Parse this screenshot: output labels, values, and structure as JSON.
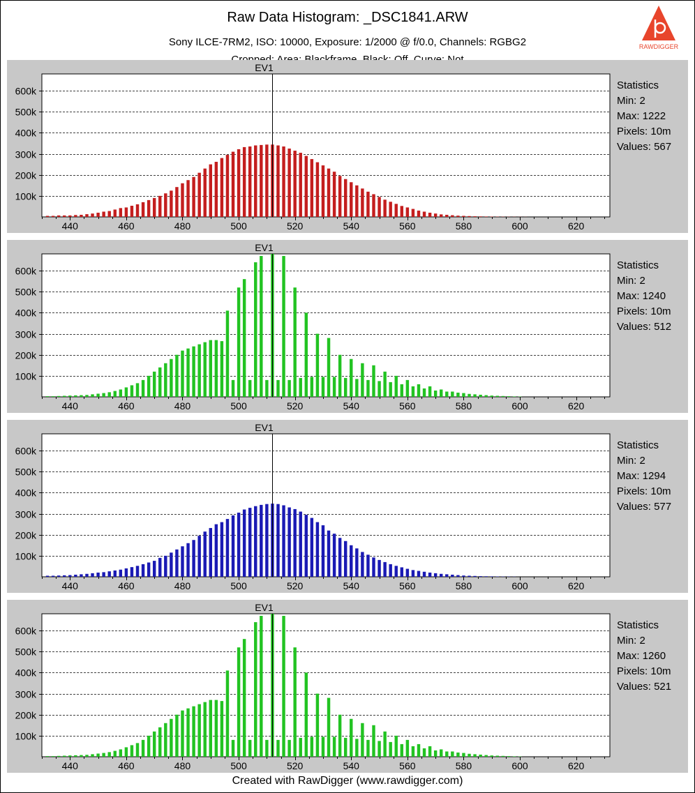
{
  "header": {
    "title": "Raw Data Histogram: _DSC1841.ARW",
    "subtitle": "Sony ILCE-7RM2, ISO: 10000, Exposure: 1/2000 @ f/0.0, Channels: RGBG2",
    "subtitle2": "Cropped: Area: Blackframe, Black: Off, Curve: Not",
    "logo_text": "RAWDIGGER",
    "logo_color": "#e8452c"
  },
  "footer": {
    "text": "Created with RawDigger (www.rawdigger.com)"
  },
  "chart_data": [
    {
      "type": "bar",
      "channel": "R",
      "color": "#c41e1e",
      "marker_label": "EV1",
      "marker_x": 512,
      "xlim": [
        430,
        632
      ],
      "ylim": [
        0,
        680000
      ],
      "xticks": [
        440,
        460,
        480,
        500,
        520,
        540,
        560,
        580,
        600,
        620
      ],
      "yticks": [
        "100k",
        "200k",
        "300k",
        "400k",
        "500k",
        "600k"
      ],
      "grid": true,
      "stats": {
        "heading": "Statistics",
        "min": "Min: 2",
        "max": "Max: 1222",
        "pixels": "Pixels: 10m",
        "values": "Values: 567"
      },
      "x": [
        432,
        434,
        436,
        438,
        440,
        442,
        444,
        446,
        448,
        450,
        452,
        454,
        456,
        458,
        460,
        462,
        464,
        466,
        468,
        470,
        472,
        474,
        476,
        478,
        480,
        482,
        484,
        486,
        488,
        490,
        492,
        494,
        496,
        498,
        500,
        502,
        504,
        506,
        508,
        510,
        512,
        514,
        516,
        518,
        520,
        522,
        524,
        526,
        528,
        530,
        532,
        534,
        536,
        538,
        540,
        542,
        544,
        546,
        548,
        550,
        552,
        554,
        556,
        558,
        560,
        562,
        564,
        566,
        568,
        570,
        572,
        574,
        576,
        578,
        580,
        582,
        584,
        586,
        588,
        590,
        592,
        594,
        596,
        598,
        600,
        602
      ],
      "values": [
        5000,
        5000,
        7000,
        7000,
        7000,
        9000,
        10000,
        13000,
        16000,
        20000,
        25000,
        28000,
        35000,
        42000,
        45000,
        53000,
        60000,
        70000,
        80000,
        90000,
        100000,
        112000,
        125000,
        142000,
        160000,
        175000,
        190000,
        210000,
        230000,
        250000,
        262000,
        280000,
        295000,
        310000,
        322000,
        332000,
        335000,
        340000,
        342000,
        344000,
        344000,
        340000,
        335000,
        325000,
        315000,
        305000,
        290000,
        275000,
        260000,
        245000,
        230000,
        215000,
        195000,
        180000,
        165000,
        150000,
        135000,
        120000,
        108000,
        95000,
        82000,
        72000,
        62000,
        52000,
        45000,
        38000,
        30000,
        25000,
        20000,
        16000,
        12000,
        10000,
        8000,
        6000,
        5000,
        4000,
        3000,
        2500,
        2000,
        1500,
        1200,
        1000,
        800,
        600,
        500,
        400
      ]
    },
    {
      "type": "bar",
      "channel": "G",
      "color": "#22c322",
      "marker_label": "EV1",
      "marker_x": 512,
      "xlim": [
        430,
        632
      ],
      "ylim": [
        0,
        680000
      ],
      "xticks": [
        440,
        460,
        480,
        500,
        520,
        540,
        560,
        580,
        600,
        620
      ],
      "yticks": [
        "100k",
        "200k",
        "300k",
        "400k",
        "500k",
        "600k"
      ],
      "grid": true,
      "stats": {
        "heading": "Statistics",
        "min": "Min: 2",
        "max": "Max: 1240",
        "pixels": "Pixels: 10m",
        "values": "Values: 512"
      },
      "x": [
        432,
        434,
        436,
        438,
        440,
        442,
        444,
        446,
        448,
        450,
        452,
        454,
        456,
        458,
        460,
        462,
        464,
        466,
        468,
        470,
        472,
        474,
        476,
        478,
        480,
        482,
        484,
        486,
        488,
        490,
        492,
        494,
        496,
        498,
        500,
        502,
        504,
        506,
        508,
        510,
        512,
        514,
        516,
        518,
        520,
        522,
        524,
        526,
        528,
        530,
        532,
        534,
        536,
        538,
        540,
        542,
        544,
        546,
        548,
        550,
        552,
        554,
        556,
        558,
        560,
        562,
        564,
        566,
        568,
        570,
        572,
        574,
        576,
        578,
        580,
        582,
        584,
        586,
        588,
        590,
        592,
        594,
        596,
        598,
        600
      ],
      "values": [
        3000,
        3000,
        4000,
        5000,
        6000,
        7000,
        8000,
        9000,
        12000,
        15000,
        18000,
        22000,
        28000,
        35000,
        45000,
        55000,
        65000,
        80000,
        100000,
        120000,
        140000,
        160000,
        180000,
        200000,
        220000,
        230000,
        240000,
        250000,
        260000,
        270000,
        270000,
        265000,
        410000,
        80000,
        520000,
        560000,
        80000,
        640000,
        670000,
        80000,
        680000,
        80000,
        670000,
        80000,
        520000,
        90000,
        400000,
        95000,
        300000,
        95000,
        280000,
        95000,
        200000,
        90000,
        180000,
        85000,
        160000,
        80000,
        150000,
        75000,
        120000,
        70000,
        100000,
        60000,
        80000,
        50000,
        60000,
        40000,
        50000,
        30000,
        35000,
        25000,
        25000,
        20000,
        18000,
        14000,
        12000,
        10000,
        8000,
        6000,
        5000,
        4000,
        3000,
        2000,
        1500
      ]
    },
    {
      "type": "bar",
      "channel": "B",
      "color": "#1a1ab4",
      "marker_label": "EV1",
      "marker_x": 512,
      "xlim": [
        430,
        632
      ],
      "ylim": [
        0,
        680000
      ],
      "xticks": [
        440,
        460,
        480,
        500,
        520,
        540,
        560,
        580,
        600,
        620
      ],
      "yticks": [
        "100k",
        "200k",
        "300k",
        "400k",
        "500k",
        "600k"
      ],
      "grid": true,
      "stats": {
        "heading": "Statistics",
        "min": "Min: 2",
        "max": "Max: 1294",
        "pixels": "Pixels: 10m",
        "values": "Values: 577"
      },
      "x": [
        432,
        434,
        436,
        438,
        440,
        442,
        444,
        446,
        448,
        450,
        452,
        454,
        456,
        458,
        460,
        462,
        464,
        466,
        468,
        470,
        472,
        474,
        476,
        478,
        480,
        482,
        484,
        486,
        488,
        490,
        492,
        494,
        496,
        498,
        500,
        502,
        504,
        506,
        508,
        510,
        512,
        514,
        516,
        518,
        520,
        522,
        524,
        526,
        528,
        530,
        532,
        534,
        536,
        538,
        540,
        542,
        544,
        546,
        548,
        550,
        552,
        554,
        556,
        558,
        560,
        562,
        564,
        566,
        568,
        570,
        572,
        574,
        576,
        578,
        580,
        582,
        584,
        586,
        588,
        590,
        592,
        594,
        596,
        598
      ],
      "values": [
        5000,
        5000,
        6000,
        7000,
        8000,
        10000,
        12000,
        14000,
        17000,
        20000,
        22000,
        26000,
        30000,
        34000,
        40000,
        46000,
        52000,
        60000,
        68000,
        76000,
        90000,
        100000,
        115000,
        130000,
        145000,
        160000,
        175000,
        195000,
        215000,
        232000,
        250000,
        260000,
        275000,
        292000,
        305000,
        320000,
        328000,
        336000,
        342000,
        346000,
        348000,
        346000,
        340000,
        330000,
        322000,
        310000,
        295000,
        280000,
        260000,
        245000,
        220000,
        205000,
        185000,
        170000,
        150000,
        135000,
        118000,
        105000,
        92000,
        80000,
        70000,
        60000,
        52000,
        45000,
        38000,
        32000,
        28000,
        24000,
        20000,
        17000,
        14000,
        12000,
        10000,
        8000,
        6000,
        5000,
        4000,
        3000,
        2500,
        2000,
        1500,
        1200,
        1000,
        800
      ]
    },
    {
      "type": "bar",
      "channel": "G2",
      "color": "#22c322",
      "marker_label": "EV1",
      "marker_x": 512,
      "xlim": [
        430,
        632
      ],
      "ylim": [
        0,
        680000
      ],
      "xticks": [
        440,
        460,
        480,
        500,
        520,
        540,
        560,
        580,
        600,
        620
      ],
      "yticks": [
        "100k",
        "200k",
        "300k",
        "400k",
        "500k",
        "600k"
      ],
      "grid": true,
      "stats": {
        "heading": "Statistics",
        "min": "Min: 2",
        "max": "Max: 1260",
        "pixels": "Pixels: 10m",
        "values": "Values: 521"
      },
      "x": [
        432,
        434,
        436,
        438,
        440,
        442,
        444,
        446,
        448,
        450,
        452,
        454,
        456,
        458,
        460,
        462,
        464,
        466,
        468,
        470,
        472,
        474,
        476,
        478,
        480,
        482,
        484,
        486,
        488,
        490,
        492,
        494,
        496,
        498,
        500,
        502,
        504,
        506,
        508,
        510,
        512,
        514,
        516,
        518,
        520,
        522,
        524,
        526,
        528,
        530,
        532,
        534,
        536,
        538,
        540,
        542,
        544,
        546,
        548,
        550,
        552,
        554,
        556,
        558,
        560,
        562,
        564,
        566,
        568,
        570,
        572,
        574,
        576,
        578,
        580,
        582,
        584,
        586,
        588,
        590,
        592,
        594,
        596,
        598,
        600
      ],
      "values": [
        3000,
        3000,
        4000,
        5000,
        6000,
        7000,
        8000,
        9000,
        12000,
        15000,
        18000,
        22000,
        28000,
        35000,
        45000,
        55000,
        65000,
        80000,
        100000,
        120000,
        140000,
        160000,
        180000,
        200000,
        220000,
        230000,
        240000,
        250000,
        260000,
        270000,
        270000,
        265000,
        410000,
        80000,
        520000,
        560000,
        80000,
        640000,
        670000,
        80000,
        680000,
        80000,
        670000,
        80000,
        520000,
        90000,
        400000,
        95000,
        300000,
        95000,
        280000,
        95000,
        200000,
        90000,
        180000,
        85000,
        160000,
        80000,
        150000,
        75000,
        120000,
        70000,
        100000,
        60000,
        80000,
        50000,
        60000,
        40000,
        50000,
        30000,
        35000,
        25000,
        25000,
        20000,
        18000,
        14000,
        12000,
        10000,
        8000,
        6000,
        5000,
        4000,
        3000,
        2000,
        1500
      ]
    }
  ]
}
